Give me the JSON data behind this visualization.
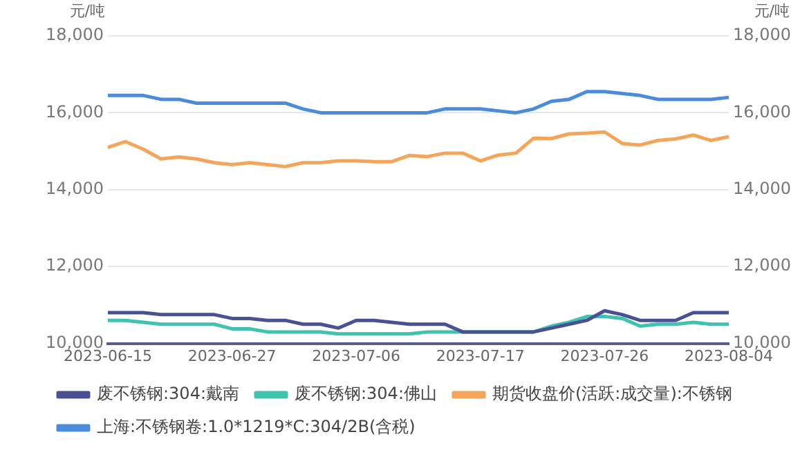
{
  "chart_data": {
    "type": "line",
    "ylabel": "元/吨",
    "y2label": "元/吨",
    "categories": [
      "2023-06-15",
      null,
      null,
      null,
      null,
      null,
      null,
      "2023-06-27",
      null,
      null,
      null,
      null,
      null,
      null,
      "2023-07-06",
      null,
      null,
      null,
      null,
      null,
      null,
      "2023-07-17",
      null,
      null,
      null,
      null,
      null,
      null,
      "2023-07-26",
      null,
      null,
      null,
      null,
      null,
      null,
      "2023-08-04"
    ],
    "ylim": [
      10000,
      18000
    ],
    "yticks": [
      {
        "value": 10000,
        "label": "10,000"
      },
      {
        "value": 12000,
        "label": "12,000"
      },
      {
        "value": 14000,
        "label": "14,000"
      },
      {
        "value": 16000,
        "label": "16,000"
      },
      {
        "value": 18000,
        "label": "18,000"
      }
    ],
    "y2lim": [
      10000,
      18000
    ],
    "y2ticks": [
      {
        "value": 10000,
        "label": "10,000"
      },
      {
        "value": 12000,
        "label": "12,000"
      },
      {
        "value": 14000,
        "label": "14,000"
      },
      {
        "value": 16000,
        "label": "16,000"
      },
      {
        "value": 18000,
        "label": "18,000"
      }
    ],
    "grid": "y",
    "legend": "bottom",
    "marker": "none",
    "line_style": "solid",
    "series": [
      {
        "name": "废不锈钢:304:戴南",
        "color": "#4a5094",
        "values": [
          10800,
          10800,
          10800,
          10750,
          10750,
          10750,
          10750,
          10650,
          10650,
          10600,
          10600,
          10500,
          10500,
          10400,
          10600,
          10600,
          10550,
          10500,
          10500,
          10500,
          10300,
          10300,
          10300,
          10300,
          10300,
          10400,
          10500,
          10600,
          10850,
          10750,
          10600,
          10600,
          10600,
          10800,
          10800,
          10800
        ]
      },
      {
        "name": "废不锈钢:304:佛山",
        "color": "#3fc2b0",
        "values": [
          10600,
          10600,
          10550,
          10500,
          10500,
          10500,
          10500,
          10380,
          10380,
          10300,
          10300,
          10300,
          10300,
          10250,
          10250,
          10250,
          10250,
          10250,
          10300,
          10300,
          10300,
          10300,
          10300,
          10300,
          10300,
          10450,
          10550,
          10700,
          10700,
          10650,
          10450,
          10500,
          10500,
          10550,
          10500,
          10500
        ]
      },
      {
        "name": "期货收盘价(活跃:成交量):不锈钢",
        "color": "#f5a55a",
        "values": [
          15100,
          15250,
          15050,
          14800,
          14850,
          14800,
          14700,
          14650,
          14700,
          14650,
          14600,
          14700,
          14700,
          14750,
          14750,
          14730,
          14730,
          14890,
          14860,
          14950,
          14950,
          14750,
          14900,
          14950,
          15340,
          15330,
          15450,
          15470,
          15500,
          15200,
          15160,
          15280,
          15320,
          15420,
          15280,
          15380
        ]
      },
      {
        "name": "上海:不锈钢卷:1.0*1219*C:304/2B(含税)",
        "color": "#4a8cdb",
        "values": [
          16450,
          16450,
          16450,
          16350,
          16350,
          16250,
          16250,
          16250,
          16250,
          16250,
          16250,
          16100,
          16000,
          16000,
          16000,
          16000,
          16000,
          16000,
          16000,
          16100,
          16100,
          16100,
          16050,
          16000,
          16100,
          16300,
          16350,
          16550,
          16550,
          16500,
          16450,
          16350,
          16350,
          16350,
          16350,
          16400
        ]
      }
    ]
  }
}
